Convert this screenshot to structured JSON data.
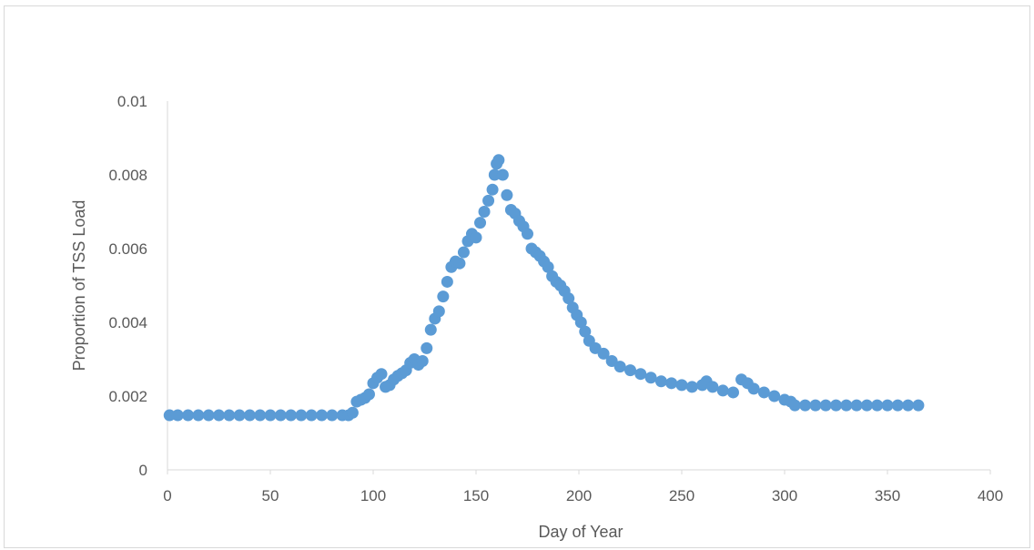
{
  "chart_data": {
    "type": "scatter",
    "title": "",
    "xlabel": "Day of Year",
    "ylabel": "Proportion of TSS Load",
    "xlim": [
      0,
      400
    ],
    "ylim": [
      0,
      0.01
    ],
    "x_ticks": [
      0,
      50,
      100,
      150,
      200,
      250,
      300,
      350,
      400
    ],
    "y_ticks": [
      0,
      0.002,
      0.004,
      0.006,
      0.008,
      0.01
    ],
    "x_tick_labels": [
      "0",
      "50",
      "100",
      "150",
      "200",
      "250",
      "300",
      "350",
      "400"
    ],
    "y_tick_labels": [
      "0",
      "0.002",
      "0.004",
      "0.006",
      "0.008",
      "0.01"
    ],
    "grid": false,
    "legend": "none",
    "marker_color": "#5B9BD5",
    "series": [
      {
        "points": [
          [
            1,
            0.00148
          ],
          [
            5,
            0.00148
          ],
          [
            10,
            0.00148
          ],
          [
            15,
            0.00148
          ],
          [
            20,
            0.00148
          ],
          [
            25,
            0.00148
          ],
          [
            30,
            0.00148
          ],
          [
            35,
            0.00148
          ],
          [
            40,
            0.00148
          ],
          [
            45,
            0.00148
          ],
          [
            50,
            0.00148
          ],
          [
            55,
            0.00148
          ],
          [
            60,
            0.00148
          ],
          [
            65,
            0.00148
          ],
          [
            70,
            0.00148
          ],
          [
            75,
            0.00148
          ],
          [
            80,
            0.00148
          ],
          [
            85,
            0.00148
          ],
          [
            88,
            0.00148
          ],
          [
            90,
            0.00155
          ],
          [
            92,
            0.00185
          ],
          [
            94,
            0.0019
          ],
          [
            96,
            0.00195
          ],
          [
            98,
            0.00205
          ],
          [
            100,
            0.00235
          ],
          [
            102,
            0.0025
          ],
          [
            104,
            0.0026
          ],
          [
            106,
            0.00225
          ],
          [
            108,
            0.0023
          ],
          [
            110,
            0.00245
          ],
          [
            112,
            0.00255
          ],
          [
            114,
            0.00262
          ],
          [
            116,
            0.0027
          ],
          [
            118,
            0.0029
          ],
          [
            120,
            0.003
          ],
          [
            122,
            0.00285
          ],
          [
            124,
            0.00295
          ],
          [
            126,
            0.0033
          ],
          [
            128,
            0.0038
          ],
          [
            130,
            0.0041
          ],
          [
            132,
            0.0043
          ],
          [
            134,
            0.0047
          ],
          [
            136,
            0.0051
          ],
          [
            138,
            0.0055
          ],
          [
            140,
            0.00565
          ],
          [
            142,
            0.0056
          ],
          [
            144,
            0.0059
          ],
          [
            146,
            0.0062
          ],
          [
            148,
            0.0064
          ],
          [
            150,
            0.0063
          ],
          [
            152,
            0.0067
          ],
          [
            154,
            0.007
          ],
          [
            156,
            0.0073
          ],
          [
            158,
            0.0076
          ],
          [
            159,
            0.008
          ],
          [
            160,
            0.0083
          ],
          [
            161,
            0.0084
          ],
          [
            163,
            0.008
          ],
          [
            165,
            0.00745
          ],
          [
            167,
            0.00705
          ],
          [
            169,
            0.00695
          ],
          [
            171,
            0.00675
          ],
          [
            173,
            0.0066
          ],
          [
            175,
            0.0064
          ],
          [
            177,
            0.006
          ],
          [
            179,
            0.0059
          ],
          [
            181,
            0.0058
          ],
          [
            183,
            0.00565
          ],
          [
            185,
            0.0055
          ],
          [
            187,
            0.00525
          ],
          [
            189,
            0.0051
          ],
          [
            191,
            0.005
          ],
          [
            193,
            0.00485
          ],
          [
            195,
            0.00465
          ],
          [
            197,
            0.0044
          ],
          [
            199,
            0.0042
          ],
          [
            201,
            0.004
          ],
          [
            203,
            0.00375
          ],
          [
            205,
            0.0035
          ],
          [
            208,
            0.0033
          ],
          [
            212,
            0.00315
          ],
          [
            216,
            0.00295
          ],
          [
            220,
            0.0028
          ],
          [
            225,
            0.0027
          ],
          [
            230,
            0.0026
          ],
          [
            235,
            0.0025
          ],
          [
            240,
            0.0024
          ],
          [
            245,
            0.00235
          ],
          [
            250,
            0.0023
          ],
          [
            255,
            0.00225
          ],
          [
            260,
            0.0023
          ],
          [
            262,
            0.0024
          ],
          [
            265,
            0.00225
          ],
          [
            270,
            0.00215
          ],
          [
            275,
            0.0021
          ],
          [
            279,
            0.00245
          ],
          [
            282,
            0.00235
          ],
          [
            285,
            0.0022
          ],
          [
            290,
            0.0021
          ],
          [
            295,
            0.002
          ],
          [
            300,
            0.0019
          ],
          [
            303,
            0.00185
          ],
          [
            305,
            0.00175
          ],
          [
            310,
            0.00175
          ],
          [
            315,
            0.00175
          ],
          [
            320,
            0.00175
          ],
          [
            325,
            0.00175
          ],
          [
            330,
            0.00175
          ],
          [
            335,
            0.00175
          ],
          [
            340,
            0.00175
          ],
          [
            345,
            0.00175
          ],
          [
            350,
            0.00175
          ],
          [
            355,
            0.00175
          ],
          [
            360,
            0.00175
          ],
          [
            365,
            0.00175
          ]
        ]
      }
    ]
  }
}
